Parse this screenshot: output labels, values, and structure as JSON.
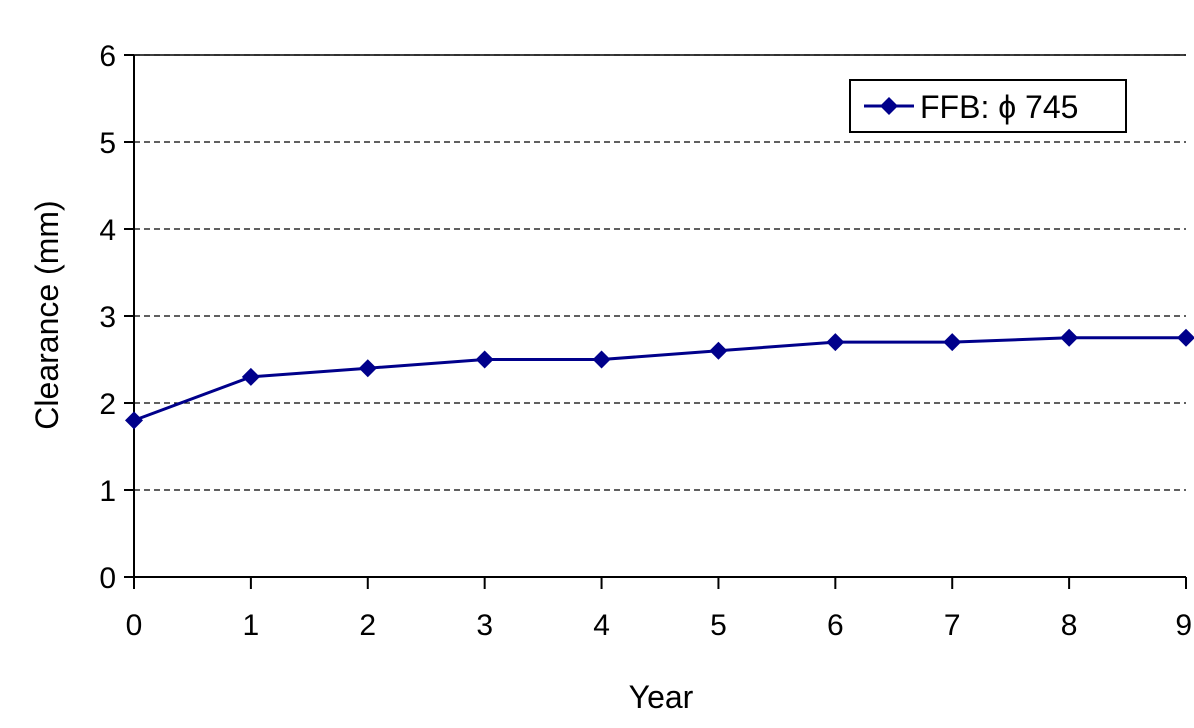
{
  "chart_data": {
    "type": "line",
    "xlabel": "Year",
    "ylabel": "Clearance (mm)",
    "x": [
      0,
      1,
      2,
      3,
      4,
      5,
      6,
      7,
      8,
      9
    ],
    "xlim": [
      0,
      9
    ],
    "ylim": [
      0,
      6
    ],
    "xticks": [
      "0",
      "1",
      "2",
      "3",
      "4",
      "5",
      "6",
      "7",
      "8",
      "9"
    ],
    "yticks": [
      "0",
      "1",
      "2",
      "3",
      "4",
      "5",
      "6"
    ],
    "grid": "horizontal-dashed",
    "legend_position": "top-right",
    "series": [
      {
        "name": "FFB: ϕ 745",
        "values": [
          1.8,
          2.3,
          2.4,
          2.5,
          2.5,
          2.6,
          2.7,
          2.7,
          2.75,
          2.75
        ],
        "color": "#00008b",
        "marker": "diamond"
      }
    ]
  }
}
